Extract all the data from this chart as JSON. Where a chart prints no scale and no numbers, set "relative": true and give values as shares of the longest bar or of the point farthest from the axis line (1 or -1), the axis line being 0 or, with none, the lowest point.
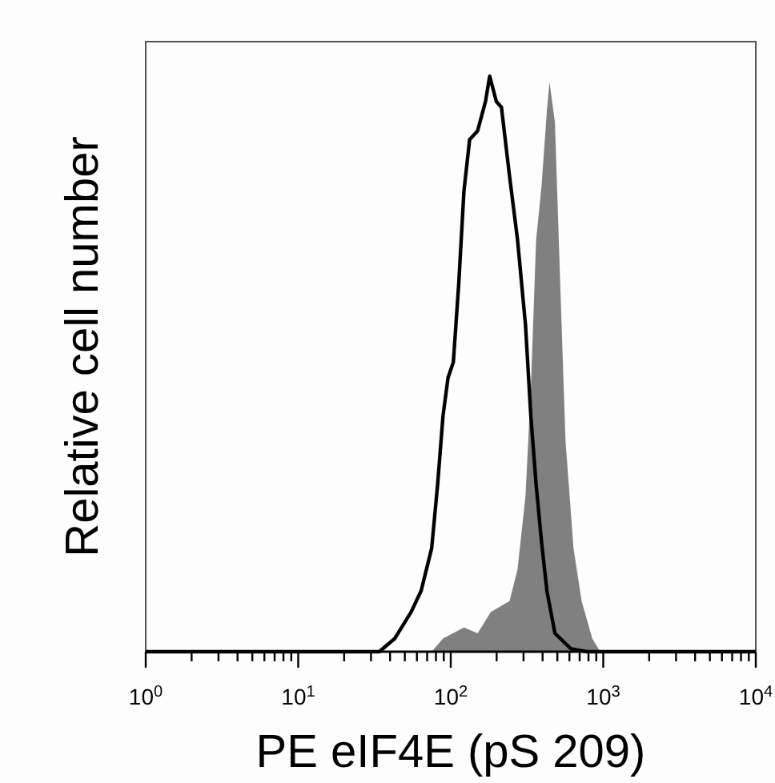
{
  "chart_data": {
    "type": "line",
    "xlabel": "PE eIF4E (pS 209)",
    "ylabel": "Relative cell number",
    "relative": true,
    "log": "x",
    "xlim": [
      1,
      10000
    ],
    "xticks": [
      {
        "value": 1,
        "label": "10$^{0}$"
      },
      {
        "value": 2,
        "label": null
      },
      {
        "value": 3,
        "label": null
      },
      {
        "value": 4,
        "label": null
      },
      {
        "value": 5,
        "label": null
      },
      {
        "value": 6,
        "label": null
      },
      {
        "value": 7,
        "label": null
      },
      {
        "value": 8,
        "label": null
      },
      {
        "value": 9,
        "label": null
      },
      {
        "value": 10,
        "label": "10$^{1}$"
      },
      {
        "value": 20,
        "label": null
      },
      {
        "value": 30,
        "label": null
      },
      {
        "value": 40,
        "label": null
      },
      {
        "value": 50,
        "label": null
      },
      {
        "value": 60,
        "label": null
      },
      {
        "value": 70,
        "label": null
      },
      {
        "value": 80,
        "label": null
      },
      {
        "value": 90,
        "label": null
      },
      {
        "value": 100,
        "label": "10$^{2}$"
      },
      {
        "value": 200,
        "label": null
      },
      {
        "value": 300,
        "label": null
      },
      {
        "value": 400,
        "label": null
      },
      {
        "value": 500,
        "label": null
      },
      {
        "value": 600,
        "label": null
      },
      {
        "value": 700,
        "label": null
      },
      {
        "value": 800,
        "label": null
      },
      {
        "value": 900,
        "label": null
      },
      {
        "value": 1000,
        "label": "10$^{3}$"
      },
      {
        "value": 2000,
        "label": null
      },
      {
        "value": 3000,
        "label": null
      },
      {
        "value": 4000,
        "label": null
      },
      {
        "value": 5000,
        "label": null
      },
      {
        "value": 6000,
        "label": null
      },
      {
        "value": 7000,
        "label": null
      },
      {
        "value": 8000,
        "label": null
      },
      {
        "value": 9000,
        "label": null
      },
      {
        "value": 10000,
        "label": "10$^{4}$"
      }
    ],
    "series": [
      {
        "type": "area",
        "color": "#808080",
        "x": [
          75,
          89,
          122,
          150,
          183,
          243,
          274,
          309,
          335,
          363,
          394,
          427,
          444,
          482,
          522,
          566,
          638,
          721,
          847,
          955
        ],
        "values": [
          0,
          0.023,
          0.042,
          0.032,
          0.069,
          0.088,
          0.143,
          0.27,
          0.457,
          0.716,
          0.81,
          0.94,
          0.99,
          0.92,
          0.64,
          0.365,
          0.18,
          0.088,
          0.023,
          0
        ]
      },
      {
        "color": "#000000",
        "x": [
          1,
          34,
          43,
          55,
          64,
          75,
          82,
          89,
          96,
          104,
          113,
          122,
          133,
          150,
          169,
          180,
          199,
          215,
          243,
          274,
          309,
          335,
          363,
          394,
          427,
          482,
          614,
          781,
          10000
        ],
        "values": [
          0,
          0,
          0.023,
          0.069,
          0.106,
          0.18,
          0.29,
          0.41,
          0.476,
          0.503,
          0.642,
          0.8,
          0.89,
          0.905,
          0.956,
          1,
          0.956,
          0.946,
          0.826,
          0.716,
          0.568,
          0.41,
          0.29,
          0.19,
          0.106,
          0.032,
          0.005,
          0,
          0
        ]
      }
    ]
  }
}
